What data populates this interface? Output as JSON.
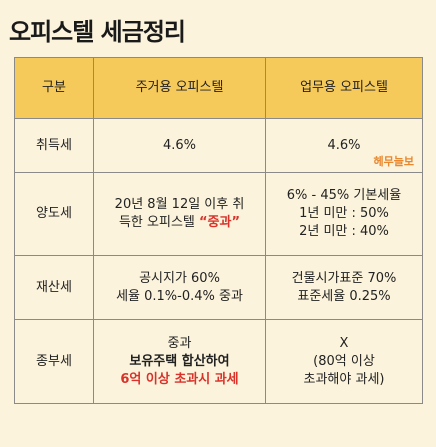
{
  "title": "오피스텔 세금정리",
  "header": {
    "category": "구분",
    "residential": "주거용 오피스텔",
    "business": "업무용 오피스텔"
  },
  "rows": [
    {
      "category": "취득세",
      "residential": [
        "4.6%"
      ],
      "business": [
        "4.6%"
      ],
      "watermark": "헤무늘보"
    },
    {
      "category": "양도세",
      "residential": {
        "line1": "20년 8월 12일 이후 취",
        "line2_prefix": "득한 오피스텔 ",
        "line2_emph": "“중과”"
      },
      "business": [
        "6% - 45% 기본세율",
        "1년 미만 : 50%",
        "2년 미만 : 40%"
      ]
    },
    {
      "category": "재산세",
      "residential": [
        "공시지가 60%",
        "세율 0.1%-0.4% 중과"
      ],
      "business": [
        "건물시가표준 70%",
        "표준세율 0.25%"
      ]
    },
    {
      "category": "종부세",
      "residential": {
        "line1": "중과",
        "line2": "보유주택 합산하여",
        "line3": "6억 이상 초과시 과세"
      },
      "business": [
        "X",
        "(80억 이상",
        "초과해야 과세)"
      ]
    }
  ]
}
